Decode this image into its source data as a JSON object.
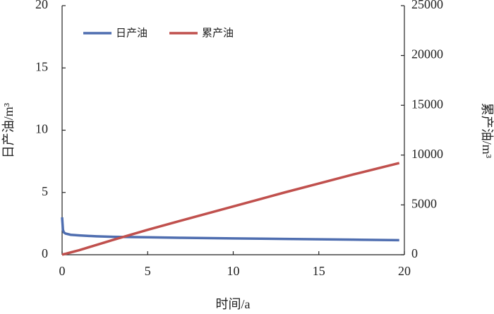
{
  "chart_data": {
    "type": "line",
    "x_label": "时间/a",
    "y_label": "日产油/m³",
    "y2_label": "累产油/m³",
    "x": [
      0,
      0.05,
      0.1,
      0.2,
      0.5,
      1,
      2,
      3,
      5,
      7,
      10,
      13,
      15,
      17,
      19.7
    ],
    "series": [
      {
        "name": "日产油",
        "color": "#4f6eb0",
        "values": [
          3.0,
          2.0,
          1.8,
          1.7,
          1.6,
          1.55,
          1.48,
          1.44,
          1.4,
          1.36,
          1.31,
          1.27,
          1.24,
          1.21,
          1.17
        ]
      },
      {
        "name": "累产油",
        "color": "#c0504d",
        "axis": "y2",
        "values": [
          0,
          30,
          55,
          95,
          230,
          460,
          980,
          1500,
          2500,
          3450,
          4850,
          6250,
          7150,
          8050,
          9200
        ]
      }
    ],
    "xlim": [
      0,
      20
    ],
    "xticks": [
      0,
      5,
      10,
      15,
      20
    ],
    "ylim": [
      0,
      20
    ],
    "yticks": [
      0,
      5,
      10,
      15,
      20
    ],
    "y2lim": [
      0,
      25000
    ],
    "y2ticks": [
      0,
      5000,
      10000,
      15000,
      20000,
      25000
    ],
    "legend": "upper left",
    "grid": false
  }
}
